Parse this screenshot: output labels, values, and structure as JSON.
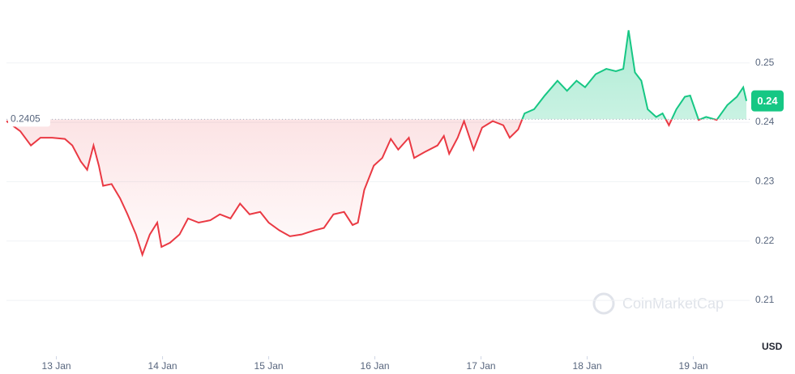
{
  "chart_data": {
    "type": "line",
    "x": [
      12.53,
      12.66,
      12.76,
      12.85,
      12.96,
      13.08,
      13.15,
      13.23,
      13.29,
      13.35,
      13.4,
      13.44,
      13.52,
      13.6,
      13.67,
      13.75,
      13.81,
      13.88,
      13.95,
      13.99,
      14.07,
      14.16,
      14.24,
      14.34,
      14.45,
      14.54,
      14.64,
      14.73,
      14.82,
      14.92,
      15.0,
      15.1,
      15.2,
      15.31,
      15.43,
      15.52,
      15.61,
      15.71,
      15.79,
      15.84,
      15.9,
      15.99,
      16.07,
      16.15,
      16.22,
      16.32,
      16.37,
      16.47,
      16.59,
      16.65,
      16.7,
      16.78,
      16.84,
      16.93,
      17.01,
      17.11,
      17.21,
      17.27,
      17.35,
      17.41,
      17.5,
      17.6,
      17.72,
      17.81,
      17.9,
      17.98,
      18.08,
      18.18,
      18.27,
      18.34,
      18.39,
      18.45,
      18.51,
      18.57,
      18.65,
      18.71,
      18.77,
      18.84,
      18.92,
      18.97,
      19.05,
      19.12,
      19.22,
      19.32,
      19.41,
      19.47,
      19.5
    ],
    "series": [
      {
        "values": [
          0.2402,
          0.2385,
          0.2361,
          0.2374,
          0.2374,
          0.2372,
          0.2361,
          0.2334,
          0.232,
          0.2361,
          0.2327,
          0.2293,
          0.2296,
          0.2272,
          0.2245,
          0.2211,
          0.2177,
          0.2211,
          0.2231,
          0.219,
          0.2197,
          0.2211,
          0.2238,
          0.2231,
          0.2235,
          0.2245,
          0.2238,
          0.2263,
          0.2245,
          0.2249,
          0.2231,
          0.2218,
          0.2208,
          0.2211,
          0.2218,
          0.2222,
          0.2245,
          0.2249,
          0.2227,
          0.2231,
          0.2286,
          0.2327,
          0.234,
          0.2372,
          0.2354,
          0.2374,
          0.234,
          0.235,
          0.2361,
          0.2377,
          0.2347,
          0.2374,
          0.2402,
          0.2354,
          0.2391,
          0.2402,
          0.2395,
          0.2374,
          0.2388,
          0.2415,
          0.2422,
          0.2445,
          0.247,
          0.2453,
          0.247,
          0.2459,
          0.2481,
          0.249,
          0.2486,
          0.249,
          0.2555,
          0.2484,
          0.247,
          0.2422,
          0.2409,
          0.2415,
          0.2395,
          0.2422,
          0.2443,
          0.2445,
          0.2404,
          0.2409,
          0.2404,
          0.2429,
          0.2443,
          0.2459,
          0.2436
        ]
      }
    ],
    "up_color": "#16c784",
    "down_color": "#ea3943",
    "reference_value": 0.2405,
    "price_badge": 0.24,
    "xlim": [
      12.53,
      19.53
    ],
    "xticks": [
      {
        "value": 13,
        "label": "13 Jan"
      },
      {
        "value": 14,
        "label": "14 Jan"
      },
      {
        "value": 15,
        "label": "15 Jan"
      },
      {
        "value": 16,
        "label": "16 Jan"
      },
      {
        "value": 17,
        "label": "17 Jan"
      },
      {
        "value": 18,
        "label": "18 Jan"
      },
      {
        "value": 19,
        "label": "19 Jan"
      }
    ],
    "ylim": [
      0.2006,
      0.2606
    ],
    "yticks": [
      0.21,
      0.22,
      0.23,
      0.24,
      0.25
    ],
    "grid": true,
    "unit_label": "USD",
    "watermark": "CoinMarketCap"
  }
}
